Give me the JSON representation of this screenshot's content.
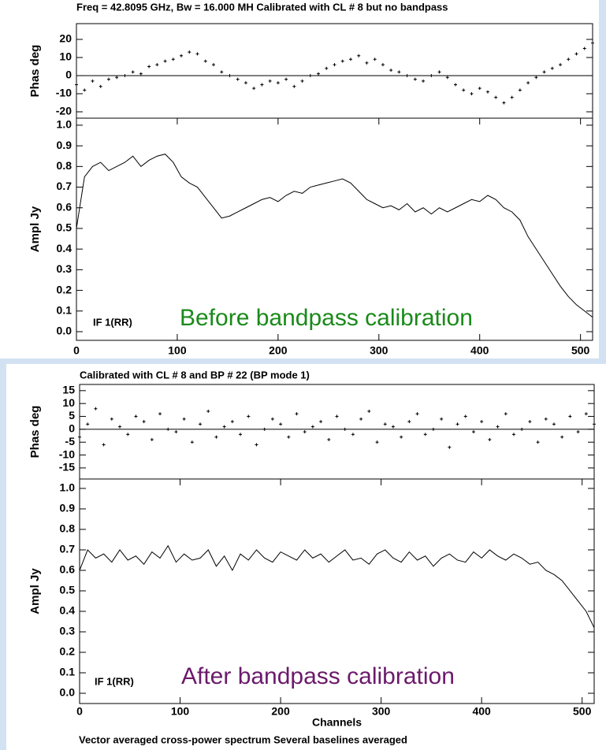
{
  "chart_data": [
    {
      "type": "scatter",
      "title": "Freq = 42.8095 GHz, Bw = 16.000 MH   Calibrated with CL # 8 but no bandpass",
      "ylabel": "Phas deg",
      "x": [
        0,
        8,
        16,
        24,
        32,
        40,
        48,
        56,
        64,
        72,
        80,
        88,
        96,
        104,
        112,
        120,
        128,
        136,
        144,
        152,
        160,
        168,
        176,
        184,
        192,
        200,
        208,
        216,
        224,
        232,
        240,
        248,
        256,
        264,
        272,
        280,
        288,
        296,
        304,
        312,
        320,
        328,
        336,
        344,
        352,
        360,
        368,
        376,
        384,
        392,
        400,
        408,
        416,
        424,
        432,
        440,
        448,
        456,
        464,
        472,
        480,
        488,
        496,
        504,
        512
      ],
      "values": [
        -5,
        -8,
        -3,
        -6,
        -2,
        -1,
        0,
        2,
        1,
        5,
        6,
        8,
        9,
        11,
        13,
        12,
        8,
        6,
        2,
        0,
        -2,
        -4,
        -7,
        -5,
        -3,
        -4,
        -2,
        -6,
        -3,
        0,
        1,
        4,
        6,
        8,
        9,
        11,
        7,
        9,
        6,
        3,
        2,
        0,
        -2,
        -3,
        0,
        2,
        -1,
        -5,
        -8,
        -10,
        -7,
        -9,
        -12,
        -15,
        -12,
        -8,
        -4,
        -1,
        2,
        4,
        6,
        9,
        12,
        15,
        18
      ],
      "color": "#000000",
      "xlim": [
        0,
        512
      ],
      "ylim": [
        -23.5,
        28.7
      ],
      "yticks": [
        -20,
        -10,
        0,
        10,
        20
      ],
      "zero_line": true
    },
    {
      "type": "line",
      "ylabel": "Ampl Jy",
      "label": "IF 1(RR)",
      "note": "Before bandpass calibration",
      "note_color": "#1a8a1a",
      "x": [
        0,
        8,
        16,
        24,
        32,
        40,
        48,
        56,
        64,
        72,
        80,
        88,
        96,
        104,
        112,
        120,
        128,
        136,
        144,
        152,
        160,
        168,
        176,
        184,
        192,
        200,
        208,
        216,
        224,
        232,
        240,
        248,
        256,
        264,
        272,
        280,
        288,
        296,
        304,
        312,
        320,
        328,
        336,
        344,
        352,
        360,
        368,
        376,
        384,
        392,
        400,
        408,
        416,
        424,
        432,
        440,
        448,
        456,
        464,
        472,
        480,
        488,
        496,
        504,
        512
      ],
      "values": [
        0.5,
        0.75,
        0.8,
        0.82,
        0.78,
        0.8,
        0.82,
        0.85,
        0.8,
        0.83,
        0.85,
        0.86,
        0.82,
        0.75,
        0.72,
        0.7,
        0.65,
        0.6,
        0.55,
        0.56,
        0.58,
        0.6,
        0.62,
        0.64,
        0.65,
        0.63,
        0.66,
        0.68,
        0.67,
        0.7,
        0.71,
        0.72,
        0.73,
        0.74,
        0.72,
        0.68,
        0.64,
        0.62,
        0.6,
        0.61,
        0.59,
        0.62,
        0.58,
        0.6,
        0.57,
        0.6,
        0.58,
        0.6,
        0.62,
        0.64,
        0.63,
        0.66,
        0.64,
        0.6,
        0.58,
        0.54,
        0.46,
        0.4,
        0.34,
        0.28,
        0.22,
        0.17,
        0.13,
        0.1,
        0.07
      ],
      "color": "#000000",
      "xlim": [
        0,
        512
      ],
      "xticks": [
        0,
        100,
        200,
        300,
        400,
        500
      ],
      "ylim": [
        -0.042,
        1.034
      ],
      "yticks": [
        {
          "value": 0,
          "label": "0.0"
        },
        0.1,
        0.2,
        0.3,
        0.4,
        0.5,
        0.6,
        0.7,
        0.8,
        0.9,
        {
          "value": 1,
          "label": "1.0"
        }
      ]
    },
    {
      "type": "scatter",
      "title": "Calibrated with CL # 8 and BP # 22 (BP mode 1)",
      "ylabel": "Phas deg",
      "x": [
        0,
        8,
        16,
        24,
        32,
        40,
        48,
        56,
        64,
        72,
        80,
        88,
        96,
        104,
        112,
        120,
        128,
        136,
        144,
        152,
        160,
        168,
        176,
        184,
        192,
        200,
        208,
        216,
        224,
        232,
        240,
        248,
        256,
        264,
        272,
        280,
        288,
        296,
        304,
        312,
        320,
        328,
        336,
        344,
        352,
        360,
        368,
        376,
        384,
        392,
        400,
        408,
        416,
        424,
        432,
        440,
        448,
        456,
        464,
        472,
        480,
        488,
        496,
        504,
        512
      ],
      "values": [
        -3,
        2,
        8,
        -6,
        4,
        1,
        -2,
        5,
        3,
        -4,
        6,
        0,
        -1,
        4,
        -5,
        2,
        7,
        -3,
        1,
        3,
        -2,
        5,
        -6,
        0,
        4,
        2,
        -3,
        6,
        -1,
        1,
        3,
        -4,
        5,
        0,
        -2,
        4,
        7,
        -5,
        2,
        1,
        -3,
        3,
        6,
        -2,
        0,
        4,
        -7,
        2,
        5,
        -1,
        3,
        -4,
        1,
        6,
        -2,
        0,
        3,
        -5,
        4,
        2,
        -3,
        5,
        -1,
        6,
        2
      ],
      "color": "#000000",
      "xlim": [
        0,
        512
      ],
      "ylim": [
        -19.3,
        17.4
      ],
      "yticks": [
        -15,
        -10,
        -5,
        0,
        5,
        10,
        15
      ],
      "zero_line": true
    },
    {
      "type": "line",
      "ylabel": "Ampl Jy",
      "xlabel": "Channels",
      "label": "IF 1(RR)",
      "note": "After bandpass calibration",
      "note_color": "#6b1a6b",
      "x": [
        0,
        8,
        16,
        24,
        32,
        40,
        48,
        56,
        64,
        72,
        80,
        88,
        96,
        104,
        112,
        120,
        128,
        136,
        144,
        152,
        160,
        168,
        176,
        184,
        192,
        200,
        208,
        216,
        224,
        232,
        240,
        248,
        256,
        264,
        272,
        280,
        288,
        296,
        304,
        312,
        320,
        328,
        336,
        344,
        352,
        360,
        368,
        376,
        384,
        392,
        400,
        408,
        416,
        424,
        432,
        440,
        448,
        456,
        464,
        472,
        480,
        488,
        496,
        504,
        512
      ],
      "values": [
        0.6,
        0.7,
        0.66,
        0.68,
        0.64,
        0.7,
        0.65,
        0.67,
        0.63,
        0.69,
        0.66,
        0.72,
        0.64,
        0.68,
        0.65,
        0.66,
        0.7,
        0.62,
        0.67,
        0.6,
        0.68,
        0.65,
        0.7,
        0.66,
        0.64,
        0.69,
        0.67,
        0.65,
        0.7,
        0.66,
        0.68,
        0.64,
        0.67,
        0.7,
        0.65,
        0.66,
        0.63,
        0.68,
        0.7,
        0.66,
        0.64,
        0.69,
        0.65,
        0.67,
        0.62,
        0.66,
        0.68,
        0.65,
        0.64,
        0.69,
        0.66,
        0.7,
        0.67,
        0.65,
        0.68,
        0.66,
        0.63,
        0.64,
        0.6,
        0.58,
        0.55,
        0.5,
        0.45,
        0.4,
        0.32
      ],
      "color": "#000000",
      "xlim": [
        0,
        512
      ],
      "xticks": [
        0,
        100,
        200,
        300,
        400,
        500
      ],
      "ylim": [
        -0.05,
        1.046
      ],
      "yticks": [
        {
          "value": 0,
          "label": "0.0"
        },
        0.1,
        0.2,
        0.3,
        0.4,
        0.5,
        0.6,
        0.7,
        0.8,
        0.9,
        {
          "value": 1,
          "label": "1.0"
        }
      ]
    }
  ],
  "footer": "Vector averaged cross-power spectrum    Several baselines averaged"
}
